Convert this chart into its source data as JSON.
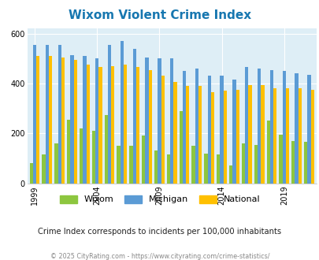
{
  "title": "Wixom Violent Crime Index",
  "years": [
    1999,
    2000,
    2001,
    2002,
    2003,
    2004,
    2005,
    2006,
    2007,
    2008,
    2009,
    2010,
    2011,
    2012,
    2013,
    2014,
    2015,
    2016,
    2017,
    2018,
    2019,
    2020,
    2021
  ],
  "wixom": [
    80,
    115,
    160,
    255,
    220,
    210,
    275,
    150,
    150,
    190,
    130,
    115,
    290,
    150,
    120,
    115,
    70,
    160,
    155,
    250,
    195,
    170,
    165
  ],
  "michigan": [
    555,
    555,
    555,
    515,
    510,
    500,
    555,
    570,
    540,
    505,
    500,
    500,
    450,
    460,
    430,
    430,
    415,
    465,
    460,
    455,
    450,
    440,
    435
  ],
  "national": [
    510,
    510,
    505,
    495,
    475,
    465,
    470,
    475,
    465,
    455,
    430,
    405,
    390,
    390,
    365,
    370,
    375,
    395,
    395,
    380,
    380,
    380,
    375
  ],
  "wixom_color": "#8dc63f",
  "michigan_color": "#5b9bd5",
  "national_color": "#ffc000",
  "bg_color": "#deeef6",
  "ylim": [
    0,
    620
  ],
  "yticks": [
    0,
    200,
    400,
    600
  ],
  "grid_color": "#ffffff",
  "subtitle": "Crime Index corresponds to incidents per 100,000 inhabitants",
  "footer": "© 2025 CityRating.com - https://www.cityrating.com/crime-statistics/",
  "title_color": "#1777b0",
  "subtitle_color": "#222222",
  "footer_color": "#888888",
  "tick_years": [
    1999,
    2004,
    2009,
    2014,
    2019
  ]
}
